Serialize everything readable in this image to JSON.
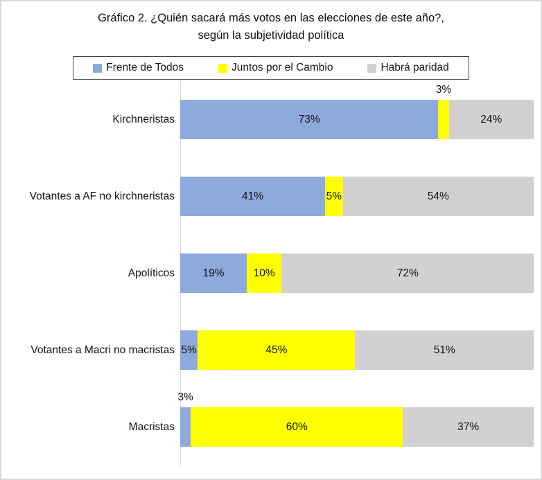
{
  "chart_data": {
    "type": "bar",
    "orientation": "horizontal",
    "stacked": true,
    "title": "Gráfico 2. ¿Quién sacará más votos en las elecciones de este año?, según la subjetividad política",
    "title_lines": [
      "Gráfico 2. ¿Quién sacará más votos en las elecciones de este año?,",
      "según la subjetividad política"
    ],
    "categories": [
      "Kirchneristas",
      "Votantes a AF no kirchneristas",
      "Apolíticos",
      "Votantes a Macri no macristas",
      "Macristas"
    ],
    "series": [
      {
        "name": "Frente de Todos",
        "color": "#8EA9DB",
        "values": [
          73,
          41,
          19,
          5,
          3
        ]
      },
      {
        "name": "Juntos por el Cambio",
        "color": "#FFFF00",
        "values": [
          3,
          5,
          10,
          45,
          60
        ]
      },
      {
        "name": "Habrá paridad",
        "color": "#D2D0D0",
        "values": [
          24,
          54,
          72,
          51,
          37
        ]
      }
    ],
    "value_labels": [
      [
        "73%",
        "3%",
        "24%"
      ],
      [
        "41%",
        "5%",
        "54%"
      ],
      [
        "19%",
        "10%",
        "72%"
      ],
      [
        "5%",
        "45%",
        "51%"
      ],
      [
        "3%",
        "60%",
        "37%"
      ]
    ],
    "outside_labels": [
      [
        false,
        true,
        false
      ],
      [
        false,
        false,
        false
      ],
      [
        false,
        false,
        false
      ],
      [
        false,
        false,
        false
      ],
      [
        true,
        false,
        false
      ]
    ],
    "xlim": [
      0,
      100
    ],
    "legend_position": "top",
    "grid": false,
    "axis_line_color": "#D9D9D9"
  }
}
